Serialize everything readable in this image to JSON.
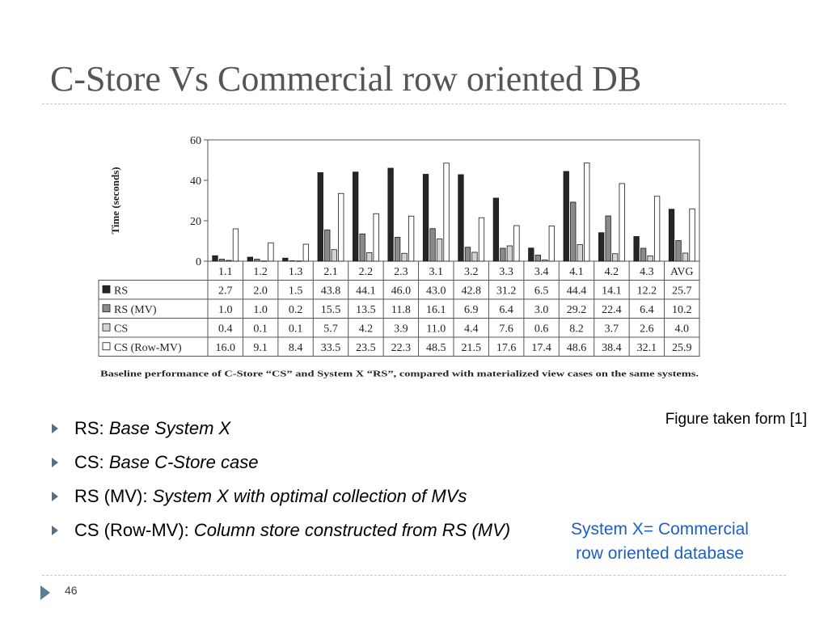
{
  "slide": {
    "title": "C-Store Vs Commercial row oriented DB",
    "figure_credit": "Figure taken form [1]",
    "page_number": "46"
  },
  "bullets": [
    {
      "term": "RS:",
      "desc": "Base System X"
    },
    {
      "term": "CS:",
      "desc": "Base C-Store case"
    },
    {
      "term": "RS (MV):",
      "desc": "System X with optimal collection of MVs"
    },
    {
      "term": "CS (Row-MV):",
      "desc": "Column store constructed from RS (MV)"
    }
  ],
  "note": {
    "line1": "System X= Commercial",
    "line2": "row oriented database",
    "color": "#1f5fbf"
  },
  "chart_data": {
    "type": "bar",
    "ylabel": "Time (seconds)",
    "ylim": [
      0,
      60
    ],
    "yticks": [
      0,
      20,
      40,
      60
    ],
    "categories": [
      "1.1",
      "1.2",
      "1.3",
      "2.1",
      "2.2",
      "2.3",
      "3.1",
      "3.2",
      "3.3",
      "3.4",
      "4.1",
      "4.2",
      "4.3",
      "AVG"
    ],
    "series": [
      {
        "name": "RS",
        "color": "#262626",
        "values": [
          2.7,
          2.0,
          1.5,
          43.8,
          44.1,
          46.0,
          43.0,
          42.8,
          31.2,
          6.5,
          44.4,
          14.1,
          12.2,
          25.7
        ]
      },
      {
        "name": "RS (MV)",
        "color": "#8a8a8a",
        "values": [
          1.0,
          1.0,
          0.2,
          15.5,
          13.5,
          11.8,
          16.1,
          6.9,
          6.4,
          3.0,
          29.2,
          22.4,
          6.4,
          10.2
        ]
      },
      {
        "name": "CS",
        "color": "#d4d4d4",
        "values": [
          0.4,
          0.1,
          0.1,
          5.7,
          4.2,
          3.9,
          11.0,
          4.4,
          7.6,
          0.6,
          8.2,
          3.7,
          2.6,
          4.0
        ]
      },
      {
        "name": "CS (Row-MV)",
        "color": "#ffffff",
        "values": [
          16.0,
          9.1,
          8.4,
          33.5,
          23.5,
          22.3,
          48.5,
          21.5,
          17.6,
          17.4,
          48.6,
          38.4,
          32.1,
          25.9
        ]
      }
    ],
    "table_values": [
      [
        "2.7",
        "2.0",
        "1.5",
        "43.8",
        "44.1",
        "46.0",
        "43.0",
        "42.8",
        "31.2",
        "6.5",
        "44.4",
        "14.1",
        "12.2",
        "25.7"
      ],
      [
        "1.0",
        "1.0",
        "0.2",
        "15.5",
        "13.5",
        "11.8",
        "16.1",
        "6.9",
        "6.4",
        "3.0",
        "29.2",
        "22.4",
        "6.4",
        "10.2"
      ],
      [
        "0.4",
        "0.1",
        "0.1",
        "5.7",
        "4.2",
        "3.9",
        "11.0",
        "4.4",
        "7.6",
        "0.6",
        "8.2",
        "3.7",
        "2.6",
        "4.0"
      ],
      [
        "16.0",
        "9.1",
        "8.4",
        "33.5",
        "23.5",
        "22.3",
        "48.5",
        "21.5",
        "17.6",
        "17.4",
        "48.6",
        "38.4",
        "32.1",
        "25.9"
      ]
    ],
    "caption": "Baseline performance of C-Store “CS” and System X “RS”, compared with materialized view cases on the same systems."
  }
}
